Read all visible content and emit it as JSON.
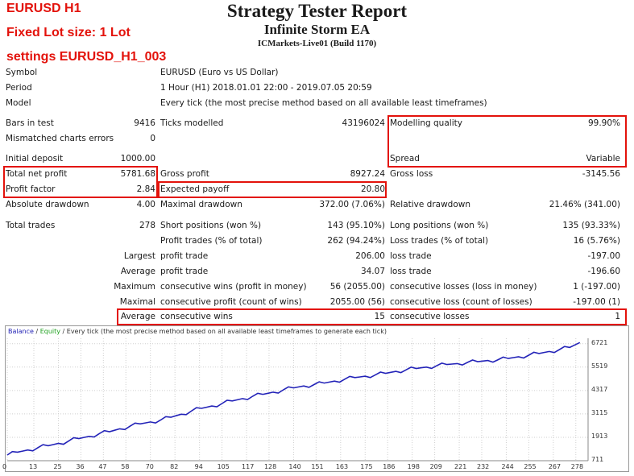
{
  "overlay": {
    "line1": "EURUSD H1",
    "line2": "Fixed Lot size: 1 Lot",
    "line3": "settings EURUSD_H1_003"
  },
  "header": {
    "title": "Strategy Tester Report",
    "ea_name": "Infinite Storm EA",
    "server": "ICMarkets-Live01 (Build 1170)"
  },
  "info": {
    "symbol_label": "Symbol",
    "symbol_value": "EURUSD (Euro vs US Dollar)",
    "period_label": "Period",
    "period_value": "1 Hour (H1) 2018.01.01 22:00 - 2019.07.05 20:59",
    "model_label": "Model",
    "model_value": "Every tick (the most precise method based on all available least timeframes)"
  },
  "stats": {
    "bars_label": "Bars in test",
    "bars_value": "9416",
    "ticks_label": "Ticks modelled",
    "ticks_value": "43196024",
    "quality_label": "Modelling quality",
    "quality_value": "99.90%",
    "mismatch_label": "Mismatched charts errors",
    "mismatch_value": "0",
    "deposit_label": "Initial deposit",
    "deposit_value": "1000.00",
    "spread_label": "Spread",
    "spread_value": "Variable",
    "net_label": "Total net profit",
    "net_value": "5781.68",
    "gross_profit_label": "Gross profit",
    "gross_profit_value": "8927.24",
    "gross_loss_label": "Gross loss",
    "gross_loss_value": "-3145.56",
    "pf_label": "Profit factor",
    "pf_value": "2.84",
    "payoff_label": "Expected payoff",
    "payoff_value": "20.80",
    "abs_dd_label": "Absolute drawdown",
    "abs_dd_value": "4.00",
    "max_dd_label": "Maximal drawdown",
    "max_dd_value": "372.00 (7.06%)",
    "rel_dd_label": "Relative drawdown",
    "rel_dd_value": "21.46% (341.00)",
    "trades_label": "Total trades",
    "trades_value": "278",
    "short_label": "Short positions (won %)",
    "short_value": "143 (95.10%)",
    "long_label": "Long positions (won %)",
    "long_value": "135 (93.33%)",
    "profit_trades_label": "Profit trades (% of total)",
    "profit_trades_value": "262 (94.24%)",
    "loss_trades_label": "Loss trades (% of total)",
    "loss_trades_value": "16 (5.76%)",
    "largest_prefix": "Largest",
    "largest_profit_label": "profit trade",
    "largest_profit_value": "206.00",
    "largest_loss_label": "loss trade",
    "largest_loss_value": "-197.00",
    "average_prefix": "Average",
    "avg_profit_label": "profit trade",
    "avg_profit_value": "34.07",
    "avg_loss_label": "loss trade",
    "avg_loss_value": "-196.60",
    "maximum_prefix": "Maximum",
    "max_cons_wins_label": "consecutive wins (profit in money)",
    "max_cons_wins_value": "56 (2055.00)",
    "max_cons_losses_label": "consecutive losses (loss in money)",
    "max_cons_losses_value": "1 (-197.00)",
    "maximal_prefix": "Maximal",
    "maximal_profit_label": "consecutive profit (count of wins)",
    "maximal_profit_value": "2055.00 (56)",
    "maximal_loss_label": "consecutive loss (count of losses)",
    "maximal_loss_value": "-197.00 (1)",
    "average2_prefix": "Average",
    "avg_cons_wins_label": "consecutive wins",
    "avg_cons_wins_value": "15",
    "avg_cons_losses_label": "consecutive losses",
    "avg_cons_losses_value": "1"
  },
  "chart_data": {
    "type": "line",
    "legend": {
      "balance": "Balance",
      "sep": " / ",
      "equity": "Equity",
      "rest": " / Every tick (the most precise method based on all available least timeframes to generate each tick)"
    },
    "colors": {
      "balance": "#2323b8",
      "grid": "#cfcfcf"
    },
    "ylim": [
      711,
      7000
    ],
    "y_ticks": [
      6721,
      5519,
      4317,
      3115,
      1913,
      711
    ],
    "x_ticks": [
      0,
      13,
      25,
      36,
      47,
      58,
      70,
      82,
      94,
      105,
      117,
      128,
      140,
      151,
      163,
      175,
      186,
      198,
      209,
      221,
      232,
      244,
      255,
      267,
      278
    ],
    "xlim": [
      0,
      284
    ],
    "series": [
      {
        "name": "Balance",
        "x": [
          0,
          5,
          10,
          15,
          20,
          25,
          30,
          35,
          40,
          45,
          50,
          55,
          60,
          65,
          70,
          75,
          80,
          85,
          90,
          95,
          100,
          105,
          110,
          115,
          120,
          125,
          130,
          135,
          140,
          145,
          150,
          155,
          160,
          165,
          170,
          175,
          180,
          185,
          190,
          195,
          200,
          205,
          210,
          215,
          220,
          225,
          230,
          235,
          240,
          245,
          250,
          255,
          260,
          265,
          270,
          275,
          280
        ],
        "values": [
          1000,
          1150,
          1260,
          1380,
          1480,
          1600,
          1720,
          1850,
          1960,
          2100,
          2200,
          2350,
          2480,
          2600,
          2700,
          2800,
          2940,
          3100,
          3260,
          3400,
          3520,
          3650,
          3780,
          3900,
          4020,
          4120,
          4230,
          4350,
          4450,
          4550,
          4620,
          4700,
          4800,
          4900,
          4980,
          5050,
          5120,
          5200,
          5300,
          5380,
          5450,
          5520,
          5590,
          5650,
          5700,
          5760,
          5800,
          5860,
          5900,
          5960,
          6050,
          6130,
          6220,
          6320,
          6420,
          6530,
          6781
        ]
      }
    ]
  }
}
